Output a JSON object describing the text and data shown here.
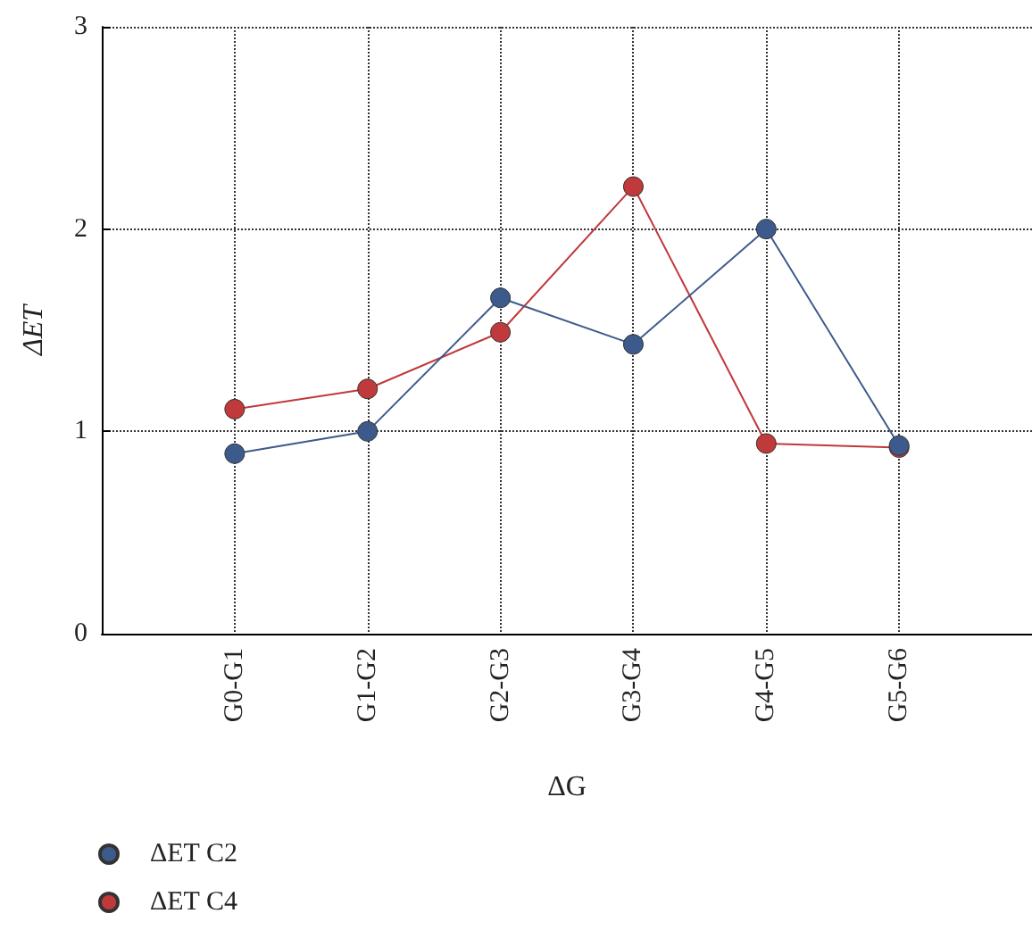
{
  "chart_data": {
    "type": "line",
    "xlabel": "ΔG",
    "ylabel": "ΔET",
    "categories": [
      "G0-G1",
      "G1-G2",
      "G2-G3",
      "G3-G4",
      "G4-G5",
      "G5-G6"
    ],
    "series": [
      {
        "name": "ΔET C2",
        "color": "#3d5a8c",
        "values": [
          0.89,
          1.0,
          1.66,
          1.43,
          2.0,
          0.93
        ]
      },
      {
        "name": "ΔET C4",
        "color": "#c0393b",
        "values": [
          1.11,
          1.21,
          1.49,
          2.21,
          0.94,
          0.92
        ]
      }
    ],
    "ylim": [
      0,
      3
    ],
    "yticks": [
      0,
      1,
      2,
      3
    ],
    "grid": true,
    "legend": "bottom left",
    "marker": "circle",
    "line_style": "solid"
  }
}
